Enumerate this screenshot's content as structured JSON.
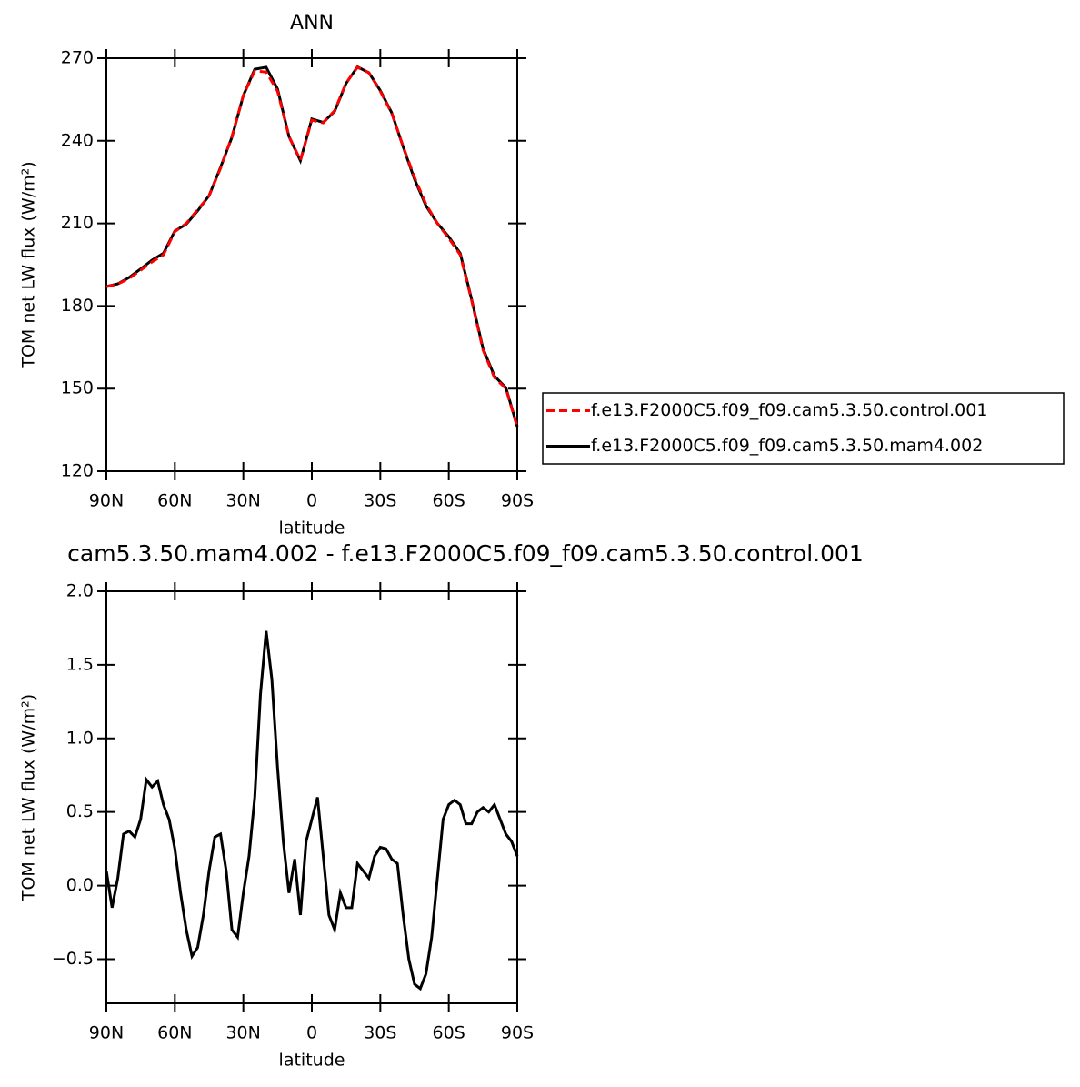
{
  "chart_data": [
    {
      "type": "line",
      "title": "ANN",
      "xlabel": "latitude",
      "ylabel": "TOM net LW flux (W/m²)",
      "x": [
        90,
        85,
        80,
        75,
        70,
        65,
        60,
        55,
        50,
        45,
        40,
        35,
        30,
        25,
        20,
        15,
        10,
        5,
        0,
        -5,
        -10,
        -15,
        -20,
        -25,
        -30,
        -35,
        -40,
        -45,
        -50,
        -55,
        -60,
        -65,
        -70,
        -75,
        -80,
        -85,
        -90
      ],
      "series": [
        {
          "name": "f.e13.F2000C5.f09_f09.cam5.3.50.control.001",
          "color": "#ff0000",
          "line_style": "dashed",
          "values": [
            187,
            188,
            190,
            193,
            196,
            198.6,
            207,
            210,
            215,
            220,
            230,
            241.6,
            256.5,
            265.4,
            265,
            258,
            241.6,
            233,
            247.5,
            246.5,
            251,
            261,
            266.7,
            264.7,
            258,
            250,
            238,
            226.7,
            217,
            210,
            204.6,
            198.6,
            182,
            164,
            154,
            150,
            136
          ]
        },
        {
          "name": "f.e13.F2000C5.f09_f09.cam5.3.50.mam4.002",
          "color": "#000000",
          "line_style": "solid",
          "values": [
            187.1,
            188.05,
            190.37,
            193.45,
            196.67,
            199.15,
            207.25,
            209.7,
            214.58,
            220.1,
            230.35,
            241.3,
            256.45,
            266,
            266.73,
            258.8,
            241.55,
            232.8,
            247.95,
            246.7,
            250.7,
            260.85,
            266.85,
            264.75,
            258.26,
            250.18,
            237.8,
            226.03,
            216.4,
            210.05,
            205.15,
            199.15,
            182.42,
            164.53,
            154.55,
            150.35,
            136.2
          ]
        }
      ],
      "xlim": [
        90,
        -90
      ],
      "xticks": [
        {
          "value": 90,
          "label": "90N"
        },
        {
          "value": 60,
          "label": "60N"
        },
        {
          "value": 30,
          "label": "30N"
        },
        0,
        {
          "value": -30,
          "label": "30S"
        },
        {
          "value": -60,
          "label": "60S"
        },
        {
          "value": -90,
          "label": "90S"
        }
      ],
      "ylim": [
        120,
        270
      ],
      "yticks": [
        120,
        150,
        180,
        210,
        240,
        270
      ],
      "legend": "right"
    },
    {
      "type": "line",
      "title": "cam5.3.50.mam4.002 - f.e13.F2000C5.f09_f09.cam5.3.50.control.001",
      "xlabel": "latitude",
      "ylabel": "TOM net LW flux (W/m²)",
      "x": [
        90,
        87.5,
        85,
        82.5,
        80,
        77.5,
        75,
        72.5,
        70,
        67.5,
        65,
        62.5,
        60,
        57.5,
        55,
        52.5,
        50,
        47.5,
        45,
        42.5,
        40,
        37.5,
        35,
        32.5,
        30,
        27.5,
        25,
        22.5,
        20,
        17.5,
        15,
        12.5,
        10,
        7.5,
        5,
        2.5,
        0,
        -2.5,
        -5,
        -7.5,
        -10,
        -12.5,
        -15,
        -17.5,
        -20,
        -22.5,
        -25,
        -27.5,
        -30,
        -32.5,
        -35,
        -37.5,
        -40,
        -42.5,
        -45,
        -47.5,
        -50,
        -52.5,
        -55,
        -57.5,
        -60,
        -62.5,
        -65,
        -67.5,
        -70,
        -72.5,
        -75,
        -77.5,
        -80,
        -82.5,
        -85,
        -87.5,
        -90
      ],
      "series": [
        {
          "name": null,
          "color": "#000000",
          "line_style": "solid",
          "values": [
            0.1,
            -0.15,
            0.05,
            0.35,
            0.37,
            0.33,
            0.45,
            0.72,
            0.67,
            0.71,
            0.55,
            0.45,
            0.25,
            -0.05,
            -0.3,
            -0.48,
            -0.42,
            -0.2,
            0.1,
            0.33,
            0.35,
            0.1,
            -0.3,
            -0.35,
            -0.05,
            0.2,
            0.6,
            1.3,
            1.73,
            1.4,
            0.8,
            0.3,
            -0.05,
            0.18,
            -0.2,
            0.3,
            0.45,
            0.6,
            0.2,
            -0.2,
            -0.3,
            -0.05,
            -0.15,
            -0.15,
            0.15,
            0.1,
            0.05,
            0.2,
            0.26,
            0.25,
            0.18,
            0.15,
            -0.2,
            -0.5,
            -0.67,
            -0.7,
            -0.6,
            -0.35,
            0.05,
            0.45,
            0.55,
            0.58,
            0.55,
            0.42,
            0.42,
            0.5,
            0.53,
            0.5,
            0.55,
            0.45,
            0.35,
            0.3,
            0.2
          ]
        }
      ],
      "xlim": [
        90,
        -90
      ],
      "xticks": [
        {
          "value": 90,
          "label": "90N"
        },
        {
          "value": 60,
          "label": "60N"
        },
        {
          "value": 30,
          "label": "30N"
        },
        0,
        {
          "value": -30,
          "label": "30S"
        },
        {
          "value": -60,
          "label": "60S"
        },
        {
          "value": -90,
          "label": "90S"
        }
      ],
      "ylim": [
        -0.8,
        2
      ],
      "yticks": [
        {
          "value": -0.5,
          "label": "−0.5"
        },
        {
          "value": 0,
          "label": "0.0"
        },
        0.5,
        {
          "value": 1,
          "label": "1.0"
        },
        1.5,
        {
          "value": 2,
          "label": "2.0"
        }
      ]
    }
  ]
}
